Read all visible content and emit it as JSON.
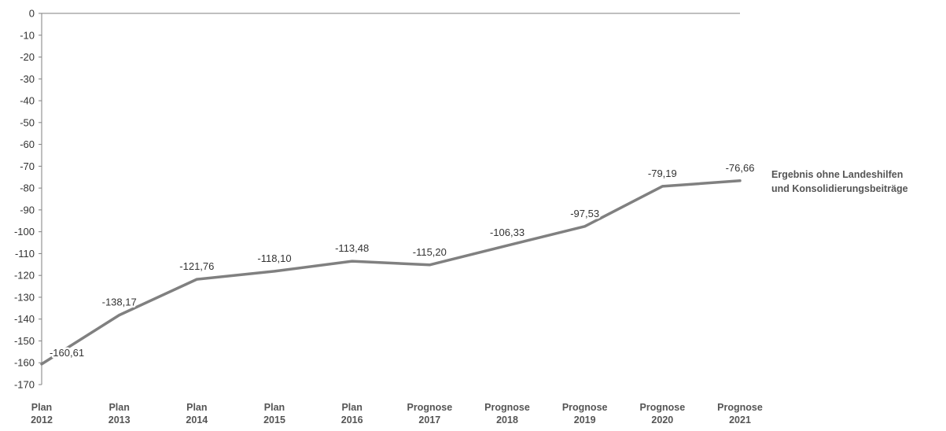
{
  "chart_data": {
    "type": "line",
    "categories": [
      [
        "Plan",
        "2012"
      ],
      [
        "Plan",
        "2013"
      ],
      [
        "Plan",
        "2014"
      ],
      [
        "Plan",
        "2015"
      ],
      [
        "Plan",
        "2016"
      ],
      [
        "Prognose",
        "2017"
      ],
      [
        "Prognose",
        "2018"
      ],
      [
        "Prognose",
        "2019"
      ],
      [
        "Prognose",
        "2020"
      ],
      [
        "Prognose",
        "2021"
      ]
    ],
    "series": [
      {
        "name": [
          "Ergebnis ohne Landeshilfen",
          "und Konsolidierungsbeiträge"
        ],
        "values": [
          -160.61,
          -138.17,
          -121.76,
          -118.1,
          -113.48,
          -115.2,
          -106.33,
          -97.53,
          -79.19,
          -76.66
        ],
        "labels": [
          "-160,61",
          "-138,17",
          "-121,76",
          "-118,10",
          "-113,48",
          "-115,20",
          "-106,33",
          "-97,53",
          "-79,19",
          "-76,66"
        ],
        "color": "#808080"
      }
    ],
    "ylim": [
      -170,
      0
    ],
    "yticks": [
      "0",
      "-10",
      "-20",
      "-30",
      "-40",
      "-50",
      "-60",
      "-70",
      "-80",
      "-90",
      "-100",
      "-110",
      "-120",
      "-130",
      "-140",
      "-150",
      "-160",
      "-170"
    ],
    "grid": false,
    "legend_position": "right"
  }
}
